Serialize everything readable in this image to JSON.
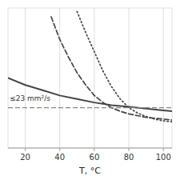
{
  "chart_data": {
    "type": "line",
    "xlabel": "T, °C",
    "xlim": [
      10,
      105
    ],
    "ylim": [
      0,
      80
    ],
    "xticks": [
      20,
      40,
      60,
      80,
      100
    ],
    "yticks": [],
    "tick_labels": "x",
    "grid": true,
    "annotations": [
      {
        "text": "≤23 mm²/s",
        "x": 11,
        "y": 26
      }
    ],
    "series": [
      {
        "color": "#444444",
        "line_style": "solid",
        "x": [
          10,
          20,
          30,
          40,
          50,
          60,
          70,
          80,
          90,
          100,
          105
        ],
        "values": [
          40,
          36,
          33,
          30,
          28,
          26,
          24.5,
          23.5,
          22.5,
          21.5,
          21
        ]
      },
      {
        "color": "#444444",
        "line_style": "dashed",
        "x": [
          35,
          40,
          45,
          50,
          55,
          60,
          65,
          70,
          75,
          80,
          85,
          90,
          95,
          100,
          105
        ],
        "values": [
          75,
          62,
          52,
          43,
          36,
          30,
          26,
          23,
          21,
          19.5,
          18.5,
          17.5,
          17,
          16.5,
          16
        ]
      },
      {
        "color": "#444444",
        "line_style": "dotted",
        "x": [
          50,
          55,
          60,
          65,
          70,
          75,
          80,
          85,
          90,
          95,
          100,
          105
        ],
        "values": [
          78,
          66,
          55,
          44,
          35,
          28,
          23,
          20,
          18,
          16.5,
          15.5,
          15
        ]
      },
      {
        "type": "hline",
        "color": "#888888",
        "line_style": "dashed",
        "values": [
          23
        ]
      }
    ]
  }
}
